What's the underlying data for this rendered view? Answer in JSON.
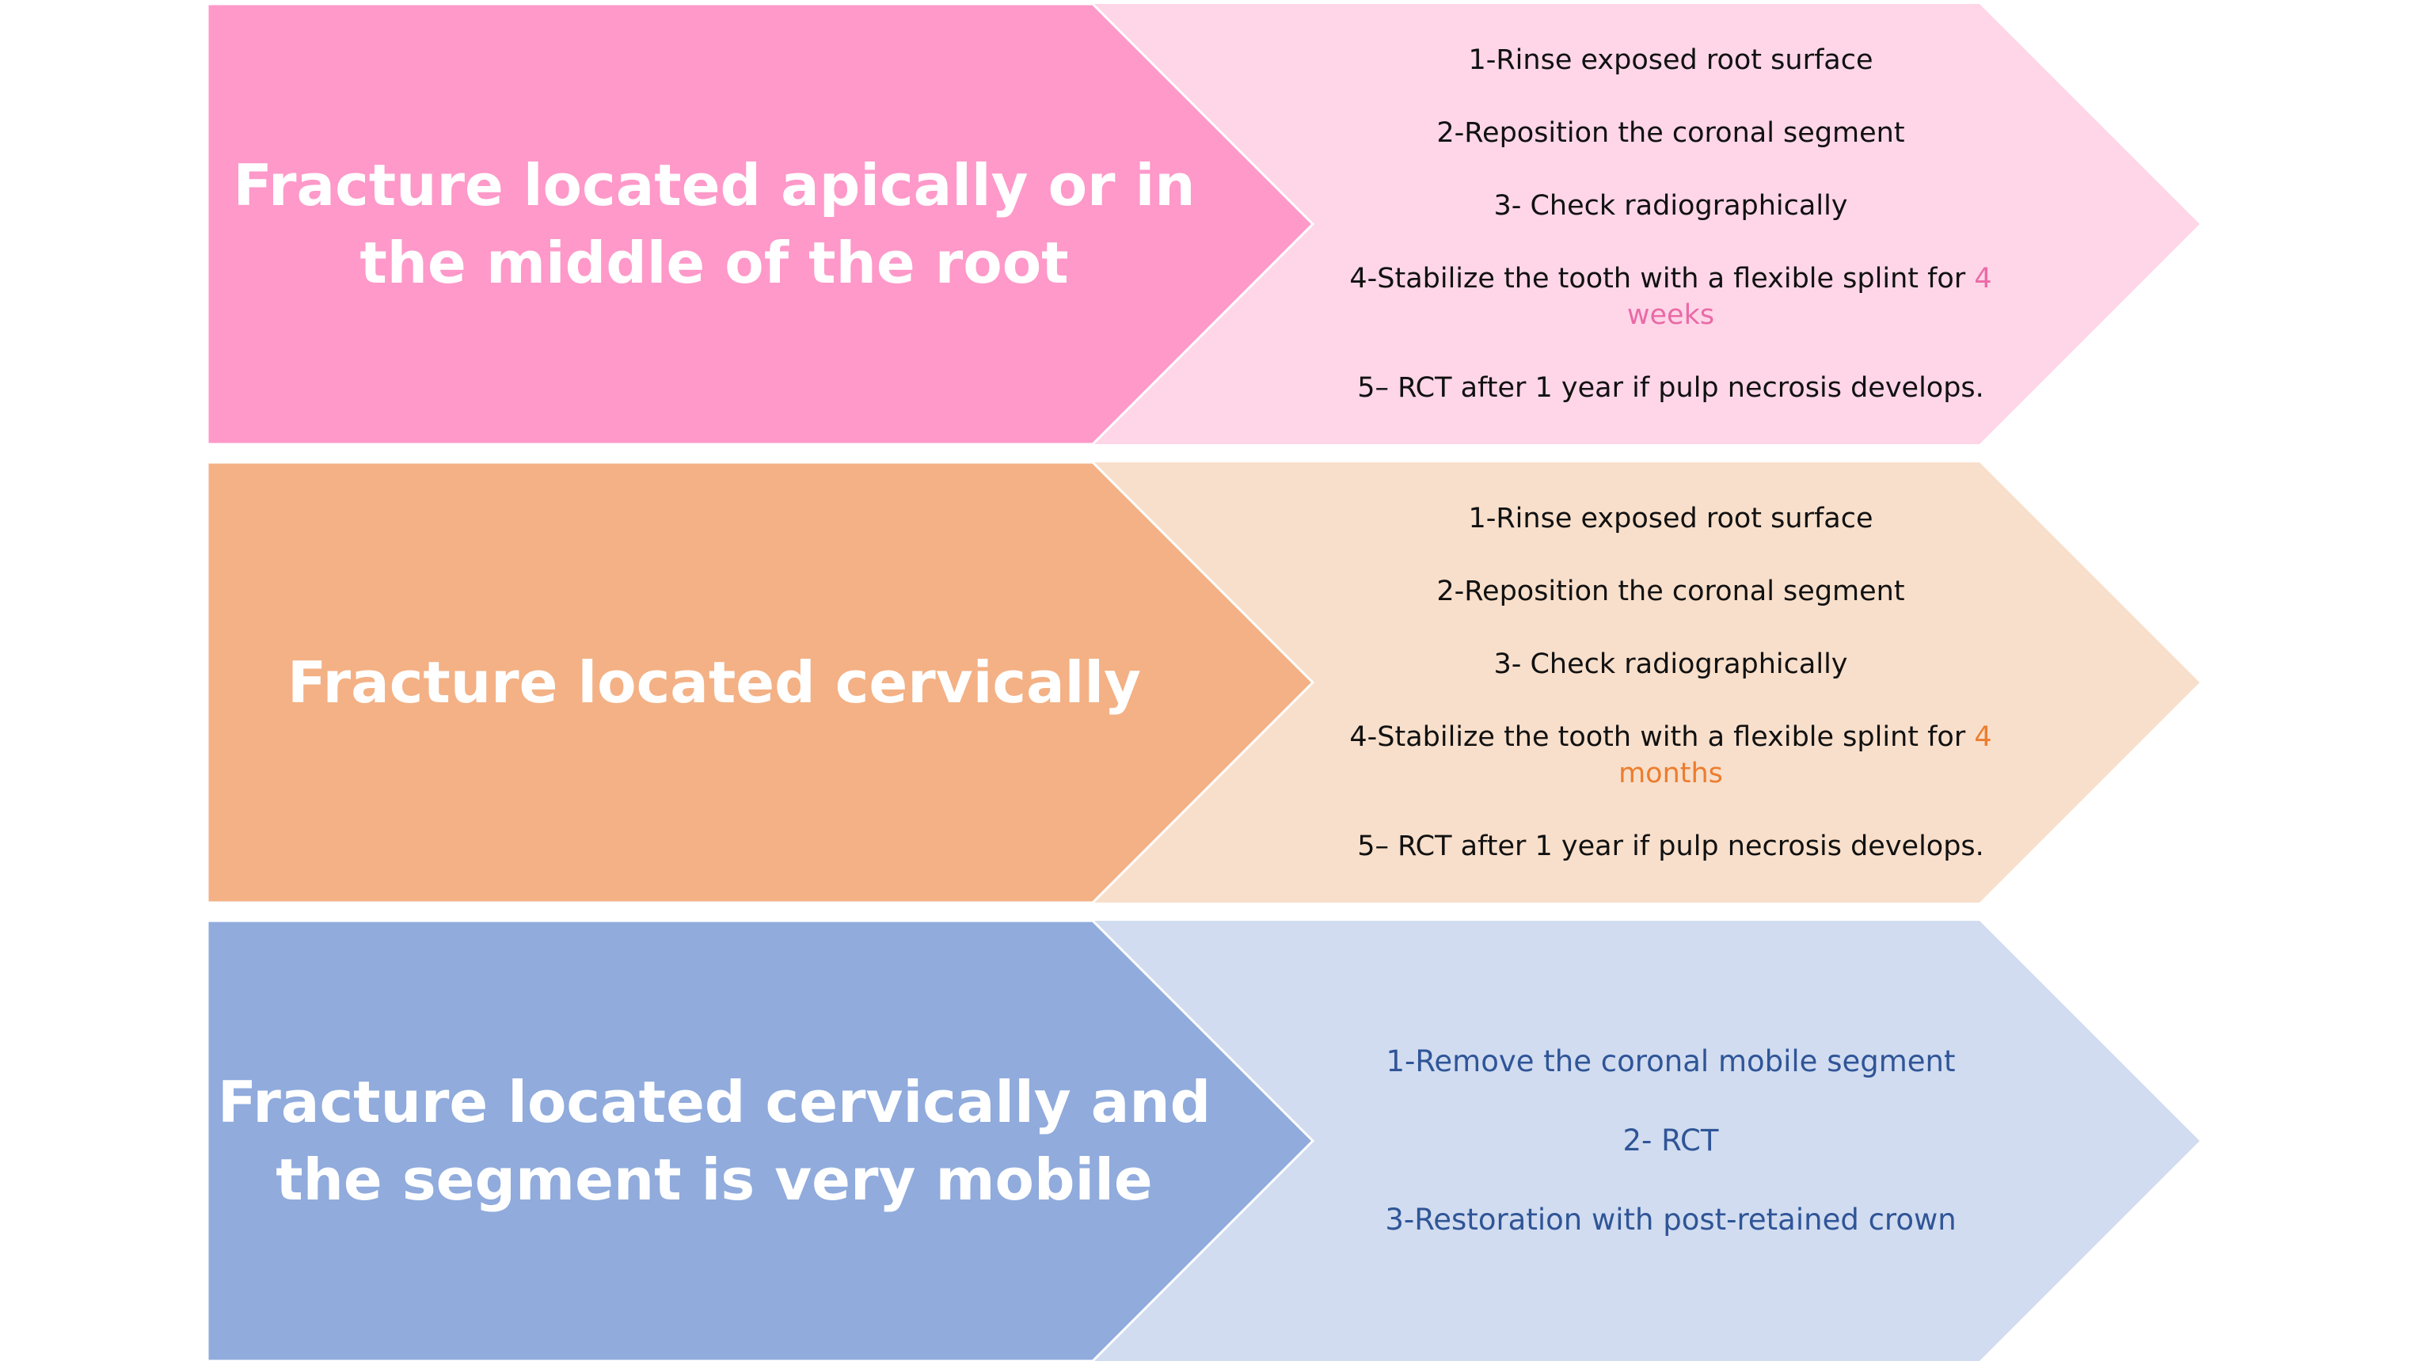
{
  "rows": [
    {
      "title_lines": [
        "Fracture located apically or in",
        "the middle of the root"
      ],
      "colors": {
        "left": "#fe99c9",
        "right": "#fed6e8",
        "text": "#111111",
        "highlight": "#ea6aa6"
      },
      "steps": [
        {
          "text": "1-Rinse exposed root surface"
        },
        {
          "text": "2-Reposition the coronal segment"
        },
        {
          "text": "3- Check radiographically"
        },
        {
          "text": "4-Stabilize the tooth with a flexible splint for ",
          "highlight_1": "4",
          "highlight_2": "weeks"
        },
        {
          "text": "5– RCT after 1 year if pulp necrosis develops."
        }
      ]
    },
    {
      "title_lines": [
        "Fracture located cervically"
      ],
      "colors": {
        "left": "#f3b185",
        "right": "#f8dfcb",
        "text": "#111111",
        "highlight": "#ec7d2e"
      },
      "steps": [
        {
          "text": "1-Rinse exposed root surface"
        },
        {
          "text": "2-Reposition the coronal segment"
        },
        {
          "text": "3- Check radiographically"
        },
        {
          "text": "4-Stabilize the tooth with a flexible splint for ",
          "highlight_1": "4",
          "highlight_2": "months"
        },
        {
          "text": "5– RCT after 1 year if pulp necrosis develops."
        }
      ]
    },
    {
      "title_lines": [
        "Fracture located cervically and",
        "the segment is very mobile"
      ],
      "colors": {
        "left": "#90abdc",
        "right": "#d1dcf0",
        "text": "#2f5597",
        "highlight": "#2f5597"
      },
      "steps": [
        {
          "text": "1-Remove the coronal mobile segment"
        },
        {
          "text": "2-  RCT"
        },
        {
          "text": "3-Restoration with post-retained crown"
        }
      ]
    }
  ]
}
